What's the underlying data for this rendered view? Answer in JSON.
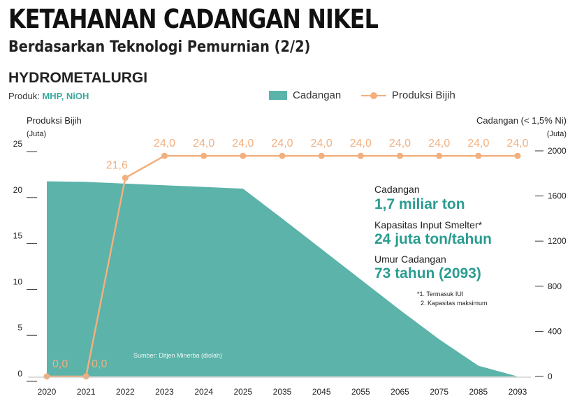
{
  "header": {
    "title": "KETAHANAN CADANGAN NIKEL",
    "subtitle": "Berdasarkan Teknologi Pemurnian (2/2)",
    "section": "HYDROMETALURGI",
    "produk_label": "Produk:",
    "produk_value": "MHP, NiOH"
  },
  "legend": {
    "area_label": "Cadangan",
    "line_label": "Produksi Bijih"
  },
  "annotations": {
    "cadangan_label": "Cadangan",
    "cadangan_value": "1,7 miliar ton",
    "kapasitas_label": "Kapasitas Input Smelter*",
    "kapasitas_value": "24 juta ton/tahun",
    "umur_label": "Umur Cadangan",
    "umur_value": "73 tahun (2093)",
    "note1": "*1. Termasuk IUI",
    "note2": "2. Kapasitas maksimum",
    "source": "Sumber: Ditjen Minerba (diolah)"
  },
  "colors": {
    "area": "#5bb3a9",
    "line": "#f2b07f",
    "accent_text": "#2a9c90"
  },
  "chart_data": {
    "type": "area",
    "categories": [
      "2020",
      "2021",
      "2022",
      "2023",
      "2024",
      "2025",
      "2035",
      "2045",
      "2055",
      "2065",
      "2075",
      "2085",
      "2093"
    ],
    "series": [
      {
        "name": "Cadangan",
        "type": "area",
        "axis": "right",
        "values": [
          1730,
          1725,
          1710,
          1695,
          1680,
          1665,
          1400,
          1130,
          860,
          590,
          330,
          95,
          0
        ]
      },
      {
        "name": "Produksi Bijih",
        "type": "line",
        "axis": "left",
        "values": [
          0,
          0,
          21.6,
          24.0,
          24.0,
          24.0,
          24.0,
          24.0,
          24.0,
          24.0,
          24.0,
          24.0,
          24.0
        ],
        "labels": [
          "0,0",
          "0,0",
          "21,6",
          "24,0",
          "24,0",
          "24,0",
          "24,0",
          "24,0",
          "24,0",
          "24,0",
          "24,0",
          "24,0",
          "24,0"
        ]
      }
    ],
    "left_axis": {
      "label": "Produksi Bijih",
      "unit": "(Juta)",
      "ticks": [
        "0",
        "5",
        "10",
        "15",
        "20",
        "25"
      ],
      "range": [
        0,
        25
      ]
    },
    "right_axis": {
      "label": "Cadangan (< 1,5% Ni)",
      "unit": "(Juta)",
      "ticks": [
        "0",
        "400",
        "800",
        "1200",
        "1600",
        "2000"
      ],
      "range": [
        0,
        2000
      ]
    },
    "grid": false
  }
}
